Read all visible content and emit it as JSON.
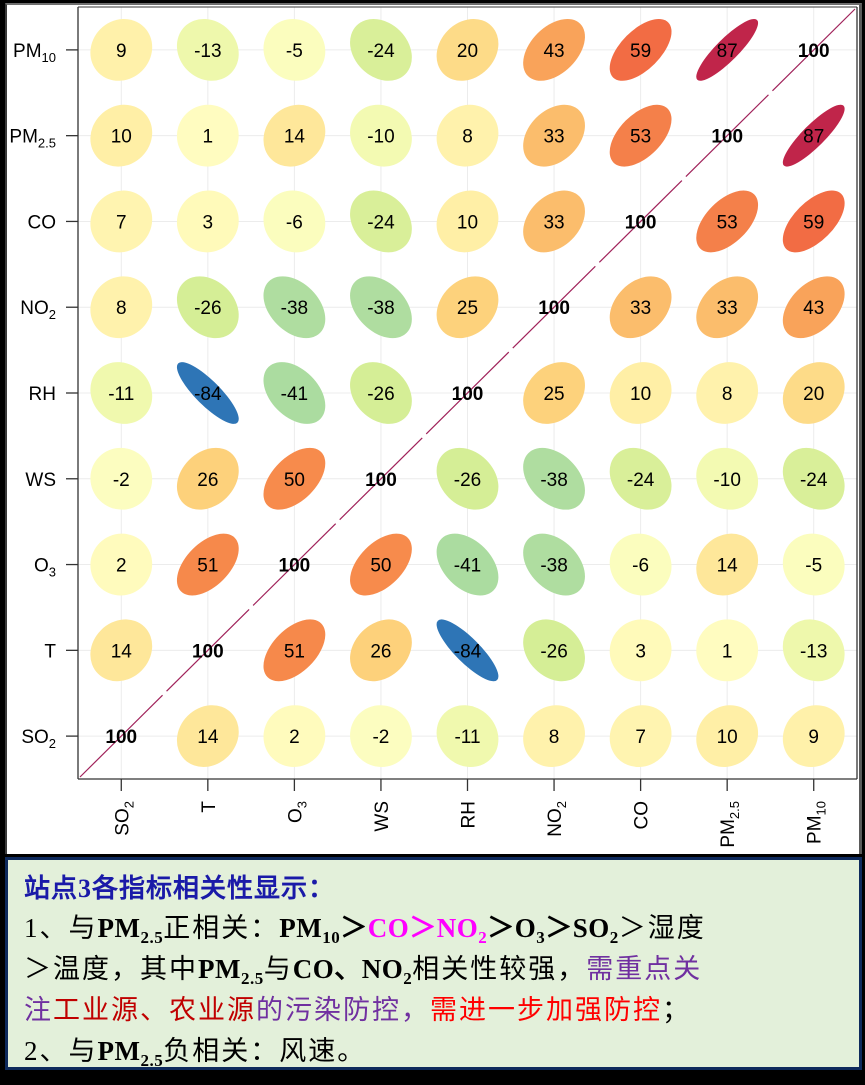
{
  "chart_data": {
    "type": "heatmap",
    "subtype": "correlation-ellipse-matrix",
    "title": "",
    "variables": [
      "SO2",
      "T",
      "O3",
      "WS",
      "RH",
      "NO2",
      "CO",
      "PM2.5",
      "PM10"
    ],
    "x_tick_labels": [
      "SO2",
      "T",
      "O3",
      "WS",
      "RH",
      "NO2",
      "CO",
      "PM2.5",
      "PM10"
    ],
    "y_tick_labels_top_to_bottom": [
      "PM10",
      "PM2.5",
      "CO",
      "NO2",
      "RH",
      "WS",
      "O3",
      "T",
      "SO2"
    ],
    "value_scale": "correlation x 100",
    "rows_top_to_bottom": [
      {
        "label": "PM10",
        "values": [
          9,
          -13,
          -5,
          -24,
          20,
          43,
          59,
          87,
          100
        ]
      },
      {
        "label": "PM2.5",
        "values": [
          10,
          1,
          14,
          -10,
          8,
          33,
          53,
          100,
          87
        ]
      },
      {
        "label": "CO",
        "values": [
          7,
          3,
          -6,
          -24,
          10,
          33,
          100,
          53,
          59
        ]
      },
      {
        "label": "NO2",
        "values": [
          8,
          -26,
          -38,
          -38,
          25,
          100,
          33,
          33,
          43
        ]
      },
      {
        "label": "RH",
        "values": [
          -11,
          -84,
          -41,
          -26,
          100,
          25,
          10,
          8,
          20
        ]
      },
      {
        "label": "WS",
        "values": [
          -2,
          26,
          50,
          100,
          -26,
          -38,
          -24,
          -10,
          -24
        ]
      },
      {
        "label": "O3",
        "values": [
          2,
          51,
          100,
          50,
          -41,
          -38,
          -6,
          14,
          -5
        ]
      },
      {
        "label": "T",
        "values": [
          14,
          100,
          51,
          26,
          -84,
          -26,
          3,
          1,
          -13
        ]
      },
      {
        "label": "SO2",
        "values": [
          100,
          14,
          2,
          -2,
          -11,
          8,
          7,
          10,
          9
        ]
      }
    ],
    "color_scale": {
      "-84": "#2e75b6",
      "-41": "#abdca0",
      "-38": "#afdda0",
      "-26": "#d5ee96",
      "-24": "#d9ef99",
      "-13": "#eef8ac",
      "-11": "#f0f9ae",
      "-10": "#f3faB2",
      "-6": "#fbfdbe",
      "-5": "#fbfdbe",
      "-2": "#fcfdc0",
      "1": "#fffcc0",
      "2": "#fffbbd",
      "3": "#fffaba",
      "7": "#fff4b0",
      "8": "#fff2ac",
      "9": "#fff1aa",
      "10": "#ffefa6",
      "14": "#fee79a",
      "20": "#fddb88",
      "25": "#fdd27c",
      "26": "#fdd17b",
      "33": "#fbbd6c",
      "43": "#f9a35a",
      "50": "#f78b4c",
      "51": "#f6894b",
      "53": "#f4804a",
      "59": "#f26c44",
      "87": "#c0254a",
      "100": "#a01050"
    },
    "diagonal_line_color": "#a0225a",
    "grid": true,
    "legend": "none"
  },
  "caption": {
    "title": "站点3各指标相关性显示：",
    "line1": {
      "prefix": "1、与",
      "pm": "PM",
      "pm_sub": "2.5",
      "mid": "正相关：",
      "pm10": "PM",
      "pm10_sub": "10",
      "gt1": "＞",
      "co": "CO＞NO",
      "no2_sub": "2",
      "gt2": "＞O",
      "o3_sub": "3",
      "gt3": "＞SO",
      "so2_sub": "2",
      "tail": "＞湿度"
    },
    "line2": {
      "head": "＞温度，其中",
      "pm": "PM",
      "pm_sub": "2.5",
      "yu": "与",
      "co": "CO、NO",
      "no2_sub": "2",
      "mid": "相关性较强，",
      "purple": "需重点关"
    },
    "line3": {
      "purple1": "注",
      "darkred": "工业源、农业源",
      "purple2": "的污染防控，",
      "red": "需进一步加强防控",
      "tail": "；"
    },
    "line4": {
      "prefix": "2、与",
      "pm": "PM",
      "pm_sub": "2.5",
      "tail": "负相关：风速。"
    }
  }
}
